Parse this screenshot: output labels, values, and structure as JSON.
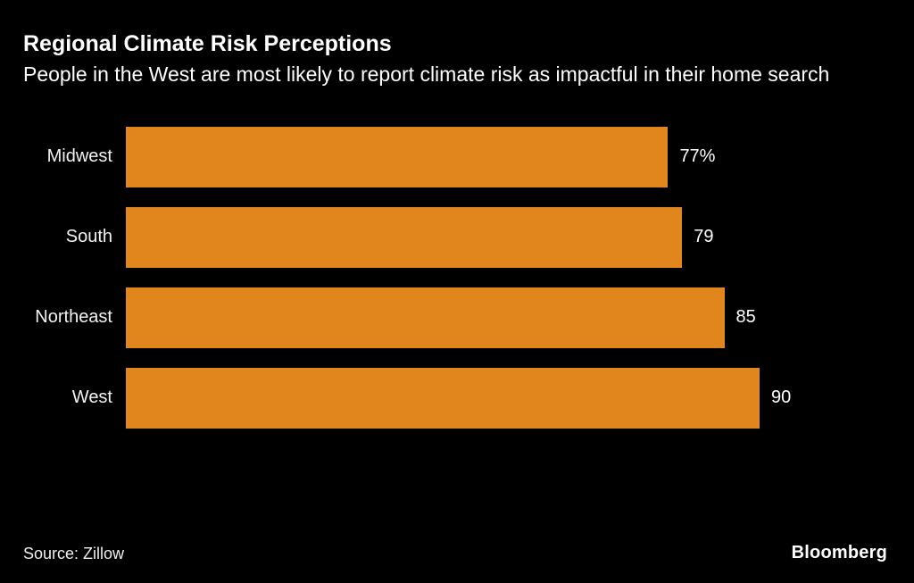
{
  "header": {
    "title": "Regional Climate Risk Perceptions",
    "subtitle": "People in the West are most likely to report climate risk as impactful in their home search"
  },
  "footer": {
    "source": "Source: Zillow",
    "brand": "Bloomberg"
  },
  "chart_data": {
    "type": "bar",
    "orientation": "horizontal",
    "title": "Regional Climate Risk Perceptions",
    "subtitle": "People in the West are most likely to report climate risk as impactful in their home search",
    "categories": [
      "Midwest",
      "South",
      "Northeast",
      "West"
    ],
    "values": [
      77,
      79,
      85,
      90
    ],
    "value_labels": [
      "77%",
      "79",
      "85",
      "90"
    ],
    "xlabel": "",
    "ylabel": "",
    "xlim": [
      0,
      90
    ],
    "grid": false,
    "legend": false,
    "bar_color": "#E1861C",
    "background_color": "#000000",
    "text_color": "#FFFFFF"
  }
}
